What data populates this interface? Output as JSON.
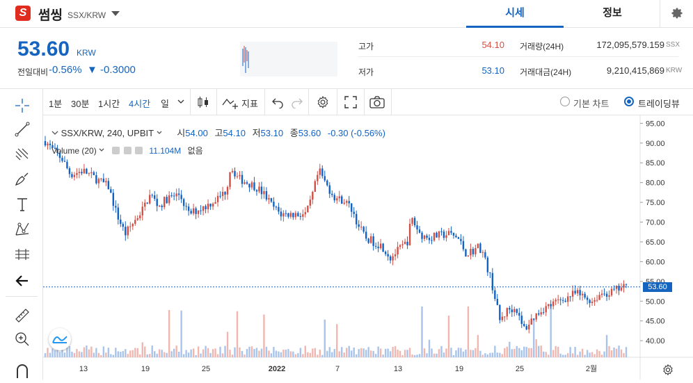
{
  "header": {
    "logo_letter": "S",
    "coin_name": "썸씽",
    "symbol": "SSX/KRW",
    "tabs": [
      {
        "label": "시세"
      },
      {
        "label": "정보"
      }
    ]
  },
  "summary": {
    "price": "53.60",
    "price_unit": "KRW",
    "change_label": "전일대비",
    "change_pct": "-0.56%",
    "change_abs": "▼ -0.3000",
    "high_label": "고가",
    "high_value": "54.10",
    "low_label": "저가",
    "low_value": "53.10",
    "volume_label": "거래량(24H)",
    "volume_value": "172,095,579.159",
    "volume_unit": "SSX",
    "amount_label": "거래대금(24H)",
    "amount_value": "9,210,415,869",
    "amount_unit": "KRW"
  },
  "toolbar": {
    "intervals": [
      "1분",
      "30분",
      "1시간",
      "4시간",
      "일"
    ],
    "active_interval": "4시간",
    "indicators_label": "지표",
    "chart_types": [
      {
        "label": "기본 차트"
      },
      {
        "label": "트레이딩뷰"
      }
    ],
    "selected_chart_type": "트레이딩뷰"
  },
  "legend": {
    "symbol": "SSX/KRW, 240, UPBIT",
    "open_label": "시",
    "open": "54.00",
    "high_label": "고",
    "high": "54.10",
    "low_label": "저",
    "low": "53.10",
    "close_label": "종",
    "close": "53.60",
    "change": "-0.30 (-0.56%)",
    "volume_label": "Volume (20)",
    "volume_value": "11.104M",
    "volume_ma": "없음"
  },
  "colors": {
    "accent": "#1565c0",
    "up": "#d24f45",
    "down": "#1261c4",
    "up_volume": "#f0b7b0",
    "down_volume": "#a9c4ea"
  },
  "chart_data": {
    "type": "candlestick",
    "y_ticks": [
      "95.00",
      "90.00",
      "85.00",
      "80.00",
      "75.00",
      "70.00",
      "65.00",
      "60.00",
      "55.00",
      "50.00",
      "45.00",
      "40.00"
    ],
    "ylim": [
      35.8,
      97.0
    ],
    "x_ticks": [
      "13",
      "19",
      "25",
      "2022",
      "7",
      "13",
      "19",
      "25",
      "2월"
    ],
    "current_price_label": "53.60",
    "close_path": [
      {
        "x": 0,
        "y": 90.5
      },
      {
        "x": 2,
        "y": 88
      },
      {
        "x": 4,
        "y": 86
      },
      {
        "x": 6,
        "y": 82
      },
      {
        "x": 9,
        "y": 83
      },
      {
        "x": 12,
        "y": 81
      },
      {
        "x": 15,
        "y": 79
      },
      {
        "x": 17,
        "y": 72
      },
      {
        "x": 19,
        "y": 67
      },
      {
        "x": 21,
        "y": 70
      },
      {
        "x": 23,
        "y": 73
      },
      {
        "x": 25,
        "y": 77
      },
      {
        "x": 27,
        "y": 74
      },
      {
        "x": 29,
        "y": 76
      },
      {
        "x": 32,
        "y": 77
      },
      {
        "x": 34,
        "y": 72
      },
      {
        "x": 36,
        "y": 73
      },
      {
        "x": 38,
        "y": 74
      },
      {
        "x": 41,
        "y": 76
      },
      {
        "x": 43,
        "y": 78
      },
      {
        "x": 44,
        "y": 84
      },
      {
        "x": 46,
        "y": 81
      },
      {
        "x": 48,
        "y": 80
      },
      {
        "x": 50,
        "y": 79
      },
      {
        "x": 52,
        "y": 77
      },
      {
        "x": 54,
        "y": 74
      },
      {
        "x": 56,
        "y": 72
      },
      {
        "x": 59,
        "y": 72
      },
      {
        "x": 62,
        "y": 72
      },
      {
        "x": 63,
        "y": 75
      },
      {
        "x": 65,
        "y": 83
      },
      {
        "x": 67,
        "y": 79
      },
      {
        "x": 69,
        "y": 76
      },
      {
        "x": 71,
        "y": 75.5
      },
      {
        "x": 73,
        "y": 73
      },
      {
        "x": 74,
        "y": 70
      },
      {
        "x": 76,
        "y": 66
      },
      {
        "x": 78,
        "y": 65
      },
      {
        "x": 80,
        "y": 64
      },
      {
        "x": 82,
        "y": 61
      },
      {
        "x": 84,
        "y": 63
      },
      {
        "x": 86,
        "y": 65
      },
      {
        "x": 87,
        "y": 71
      },
      {
        "x": 89,
        "y": 67
      },
      {
        "x": 91,
        "y": 66
      },
      {
        "x": 93,
        "y": 66.5
      },
      {
        "x": 96,
        "y": 67
      },
      {
        "x": 98,
        "y": 66
      },
      {
        "x": 100,
        "y": 62
      },
      {
        "x": 102,
        "y": 63
      },
      {
        "x": 103,
        "y": 64
      },
      {
        "x": 104,
        "y": 62
      },
      {
        "x": 106,
        "y": 55
      },
      {
        "x": 107,
        "y": 50
      },
      {
        "x": 108,
        "y": 45
      },
      {
        "x": 110,
        "y": 48
      },
      {
        "x": 112,
        "y": 48
      },
      {
        "x": 113,
        "y": 44
      },
      {
        "x": 114,
        "y": 43
      },
      {
        "x": 116,
        "y": 46
      },
      {
        "x": 118,
        "y": 48
      },
      {
        "x": 120,
        "y": 49
      },
      {
        "x": 122,
        "y": 50
      },
      {
        "x": 124,
        "y": 51
      },
      {
        "x": 126,
        "y": 52
      },
      {
        "x": 128,
        "y": 51
      },
      {
        "x": 130,
        "y": 50
      },
      {
        "x": 132,
        "y": 52
      },
      {
        "x": 134,
        "y": 52
      },
      {
        "x": 136,
        "y": 53
      },
      {
        "x": 138,
        "y": 53.6
      }
    ]
  }
}
